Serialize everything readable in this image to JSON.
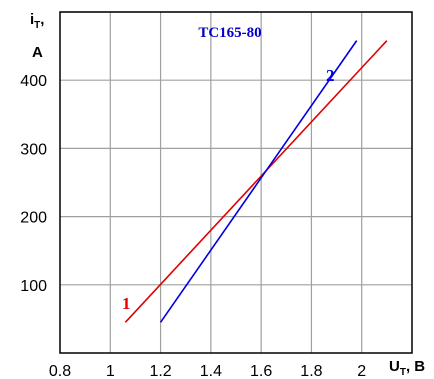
{
  "chart_data": {
    "type": "line",
    "title": "TC165-80",
    "xlabel": {
      "main": "U",
      "sub": "T",
      "suffix": ", B"
    },
    "ylabel": {
      "main": "i",
      "sub": "T",
      "suffix": ",",
      "unit": "A"
    },
    "xlim": [
      0.8,
      2.2
    ],
    "ylim": [
      0,
      500
    ],
    "xticks": [
      0.8,
      1,
      1.2,
      1.4,
      1.6,
      1.8,
      2
    ],
    "xtick_labels": [
      "0.8",
      "1",
      "1.2",
      "1.4",
      "1.6",
      "1.8",
      "2"
    ],
    "yticks": [
      100,
      200,
      300,
      400
    ],
    "ytick_labels": [
      "100",
      "200",
      "300",
      "400"
    ],
    "grid": true,
    "colors": {
      "title": "#0000cc",
      "series1": "#e00000",
      "series2": "#0000e0",
      "grid": "#a0a0a0"
    },
    "series": [
      {
        "name": "1",
        "color": "#e00000",
        "x": [
          1.06,
          2.1
        ],
        "y": [
          45,
          458
        ]
      },
      {
        "name": "2",
        "color": "#0000e0",
        "x": [
          1.2,
          1.98
        ],
        "y": [
          45,
          458
        ]
      }
    ]
  }
}
